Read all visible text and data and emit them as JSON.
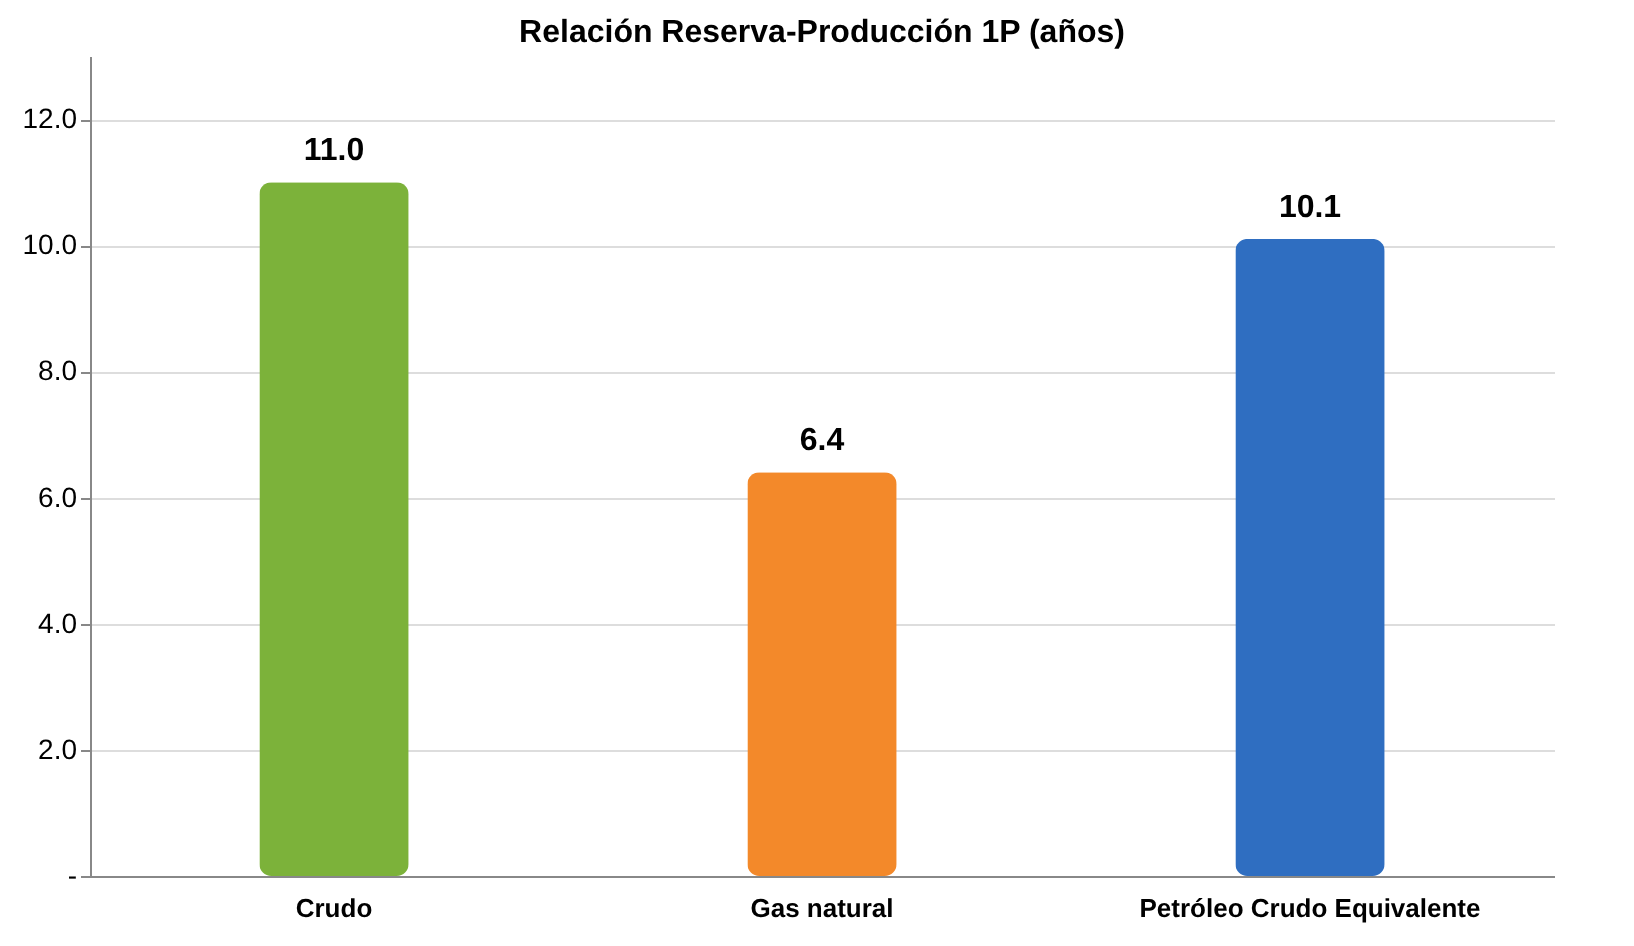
{
  "chart_data": {
    "type": "bar",
    "title": "Relación Reserva-Producción 1P  (años)",
    "categories": [
      "Crudo",
      "Gas natural",
      "Petróleo Crudo Equivalente"
    ],
    "values": [
      11.0,
      6.4,
      10.1
    ],
    "colors": [
      "#7cb23a",
      "#f3892a",
      "#2f6ec1"
    ],
    "value_labels": [
      "11.0",
      "6.4",
      "10.1"
    ],
    "ylim": [
      0,
      13
    ],
    "yticks": [
      {
        "value": 0,
        "label": "-"
      },
      {
        "value": 2,
        "label": "2.0"
      },
      {
        "value": 4,
        "label": "4.0"
      },
      {
        "value": 6,
        "label": "6.0"
      },
      {
        "value": 8,
        "label": "8.0"
      },
      {
        "value": 10,
        "label": "10.0"
      },
      {
        "value": 12,
        "label": "12.0"
      }
    ],
    "grid": "y"
  }
}
